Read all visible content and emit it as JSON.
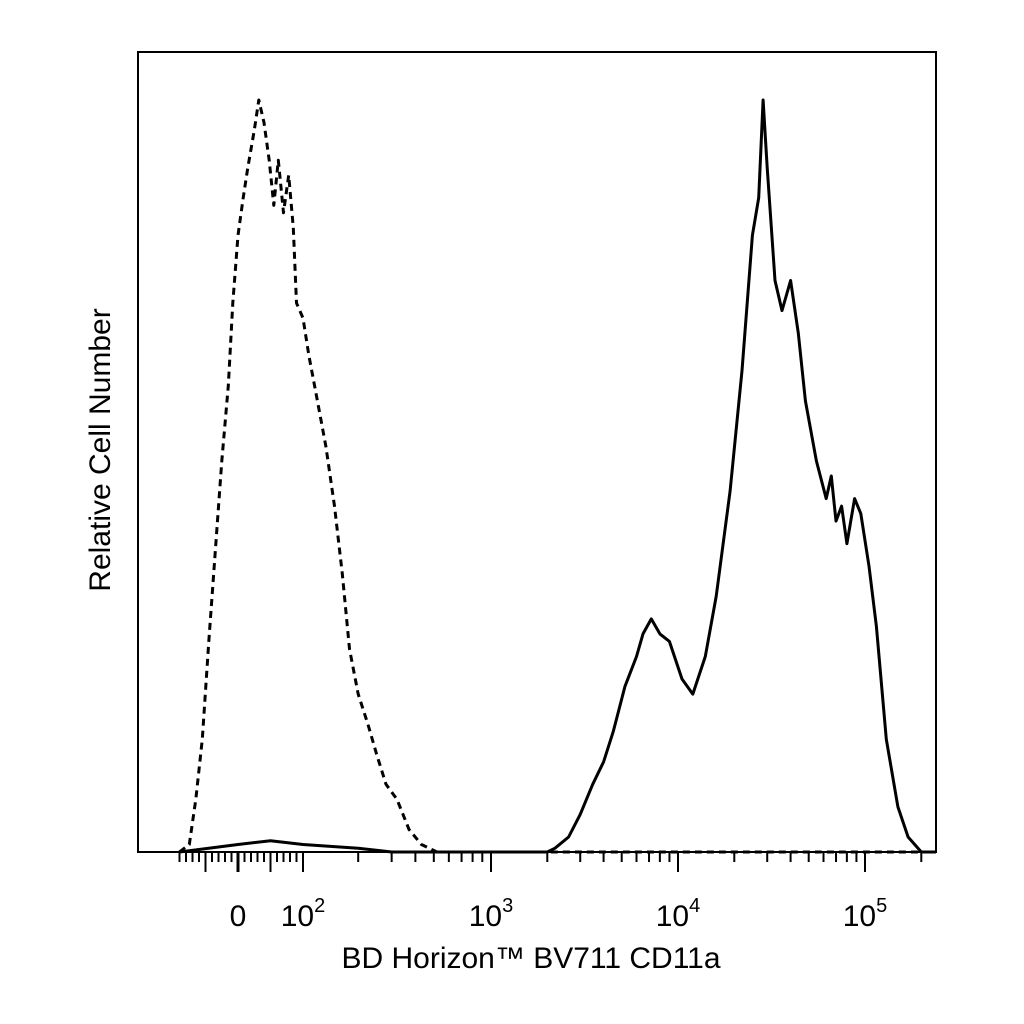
{
  "chart_data": {
    "type": "line",
    "title": "",
    "xlabel": "BD Horizon™ BV711 CD11a",
    "ylabel": "Relative Cell Number",
    "x_scale": "biexponential",
    "xlim": [
      -90,
      250000
    ],
    "ylim": [
      0,
      1
    ],
    "grid": false,
    "legend": "none",
    "x_tick_labels": [
      {
        "value": 0,
        "base": "0",
        "exp": ""
      },
      {
        "value": 100,
        "base": "10",
        "exp": "2"
      },
      {
        "value": 1000,
        "base": "10",
        "exp": "3"
      },
      {
        "value": 10000,
        "base": "10",
        "exp": "4"
      },
      {
        "value": 100000,
        "base": "10",
        "exp": "5"
      }
    ],
    "series": [
      {
        "style": "dashed",
        "color": "#000000",
        "points": [
          [
            -90,
            0.0
          ],
          [
            -75,
            0.01
          ],
          [
            -65,
            0.07
          ],
          [
            -55,
            0.15
          ],
          [
            -45,
            0.28
          ],
          [
            -35,
            0.4
          ],
          [
            -25,
            0.52
          ],
          [
            -15,
            0.62
          ],
          [
            -8,
            0.73
          ],
          [
            0,
            0.82
          ],
          [
            8,
            0.87
          ],
          [
            15,
            0.91
          ],
          [
            25,
            0.96
          ],
          [
            32,
            1.0
          ],
          [
            40,
            0.97
          ],
          [
            48,
            0.92
          ],
          [
            55,
            0.86
          ],
          [
            62,
            0.92
          ],
          [
            70,
            0.85
          ],
          [
            78,
            0.9
          ],
          [
            85,
            0.83
          ],
          [
            90,
            0.73
          ],
          [
            100,
            0.71
          ],
          [
            110,
            0.66
          ],
          [
            120,
            0.61
          ],
          [
            135,
            0.54
          ],
          [
            150,
            0.46
          ],
          [
            165,
            0.37
          ],
          [
            180,
            0.27
          ],
          [
            200,
            0.21
          ],
          [
            225,
            0.17
          ],
          [
            250,
            0.13
          ],
          [
            280,
            0.09
          ],
          [
            320,
            0.07
          ],
          [
            370,
            0.03
          ],
          [
            430,
            0.01
          ],
          [
            520,
            0.0
          ],
          [
            2000,
            0.0
          ],
          [
            250000,
            0.0
          ]
        ]
      },
      {
        "style": "solid",
        "color": "#000000",
        "points": [
          [
            -90,
            0.0
          ],
          [
            0,
            0.01
          ],
          [
            50,
            0.015
          ],
          [
            100,
            0.01
          ],
          [
            200,
            0.005
          ],
          [
            300,
            0.0
          ],
          [
            2000,
            0.0
          ],
          [
            2200,
            0.005
          ],
          [
            2600,
            0.02
          ],
          [
            3000,
            0.05
          ],
          [
            3500,
            0.09
          ],
          [
            4000,
            0.12
          ],
          [
            4500,
            0.16
          ],
          [
            5200,
            0.22
          ],
          [
            6000,
            0.26
          ],
          [
            6500,
            0.29
          ],
          [
            7200,
            0.31
          ],
          [
            8000,
            0.29
          ],
          [
            9000,
            0.28
          ],
          [
            10500,
            0.23
          ],
          [
            12000,
            0.21
          ],
          [
            14000,
            0.26
          ],
          [
            16000,
            0.34
          ],
          [
            19000,
            0.48
          ],
          [
            22000,
            0.64
          ],
          [
            25000,
            0.82
          ],
          [
            27000,
            0.87
          ],
          [
            28500,
            1.0
          ],
          [
            30000,
            0.91
          ],
          [
            33000,
            0.76
          ],
          [
            36000,
            0.72
          ],
          [
            40000,
            0.76
          ],
          [
            44000,
            0.69
          ],
          [
            48000,
            0.6
          ],
          [
            55000,
            0.52
          ],
          [
            62000,
            0.47
          ],
          [
            66000,
            0.5
          ],
          [
            70000,
            0.44
          ],
          [
            75000,
            0.46
          ],
          [
            80000,
            0.41
          ],
          [
            88000,
            0.47
          ],
          [
            95000,
            0.45
          ],
          [
            105000,
            0.38
          ],
          [
            115000,
            0.3
          ],
          [
            130000,
            0.15
          ],
          [
            150000,
            0.06
          ],
          [
            170000,
            0.02
          ],
          [
            200000,
            0.0
          ],
          [
            250000,
            0.0
          ]
        ]
      }
    ]
  }
}
